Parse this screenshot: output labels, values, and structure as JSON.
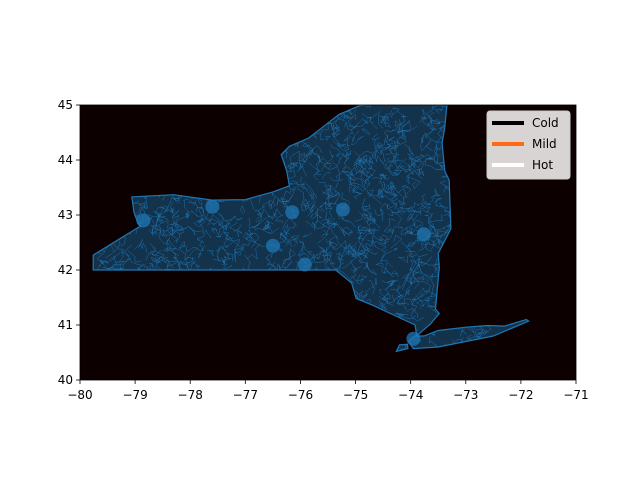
{
  "colors": {
    "figure_background": "#ffffff",
    "axes_background": "#0c0000",
    "roads": "#1f77b4",
    "legend_background": "#d9d4d4"
  },
  "chart_data": {
    "type": "map",
    "region": "New York State road network",
    "xlim": [
      -80,
      -71
    ],
    "ylim": [
      40,
      45
    ],
    "x_ticks": [
      "−80",
      "−79",
      "−78",
      "−77",
      "−76",
      "−75",
      "−74",
      "−73",
      "−72",
      "−71"
    ],
    "y_ticks": [
      "40",
      "41",
      "42",
      "43",
      "44",
      "45"
    ],
    "legend_placement": "top-right",
    "legend": [
      {
        "label": "Cold",
        "color": "#000000"
      },
      {
        "label": "Mild",
        "color": "#ff6a13"
      },
      {
        "label": "Hot",
        "color": "#ffffff"
      }
    ],
    "outline_lonlat": [
      [
        -79.76,
        42.27
      ],
      [
        -79.76,
        42.0
      ],
      [
        -75.36,
        42.0
      ],
      [
        -75.2,
        41.87
      ],
      [
        -75.07,
        41.76
      ],
      [
        -74.99,
        41.48
      ],
      [
        -74.69,
        41.36
      ],
      [
        -73.92,
        41.0
      ],
      [
        -73.89,
        40.8
      ],
      [
        -73.72,
        40.95
      ],
      [
        -73.65,
        41.01
      ],
      [
        -73.48,
        41.21
      ],
      [
        -73.55,
        41.29
      ],
      [
        -73.48,
        42.05
      ],
      [
        -73.5,
        42.3
      ],
      [
        -73.27,
        42.75
      ],
      [
        -73.3,
        43.63
      ],
      [
        -73.38,
        43.8
      ],
      [
        -73.43,
        44.3
      ],
      [
        -73.38,
        44.6
      ],
      [
        -73.34,
        45.01
      ],
      [
        -74.7,
        45.01
      ],
      [
        -74.92,
        44.99
      ],
      [
        -75.3,
        44.83
      ],
      [
        -75.85,
        44.4
      ],
      [
        -76.2,
        44.25
      ],
      [
        -76.35,
        44.1
      ],
      [
        -76.25,
        43.8
      ],
      [
        -76.2,
        43.53
      ],
      [
        -76.5,
        43.42
      ],
      [
        -77.0,
        43.28
      ],
      [
        -77.6,
        43.27
      ],
      [
        -78.3,
        43.37
      ],
      [
        -79.06,
        43.33
      ],
      [
        -79.02,
        43.05
      ],
      [
        -78.95,
        42.85
      ],
      [
        -78.9,
        42.8
      ],
      [
        -79.76,
        42.27
      ]
    ],
    "long_island_lonlat": [
      [
        -74.04,
        40.7
      ],
      [
        -73.95,
        40.57
      ],
      [
        -73.5,
        40.6
      ],
      [
        -73.0,
        40.7
      ],
      [
        -72.5,
        40.8
      ],
      [
        -71.86,
        41.07
      ],
      [
        -71.9,
        41.1
      ],
      [
        -72.3,
        40.98
      ],
      [
        -72.6,
        40.99
      ],
      [
        -73.0,
        40.96
      ],
      [
        -73.5,
        40.9
      ],
      [
        -73.76,
        40.8
      ],
      [
        -73.93,
        40.8
      ],
      [
        -74.04,
        40.7
      ]
    ],
    "staten_island_lonlat": [
      [
        -74.26,
        40.52
      ],
      [
        -74.05,
        40.57
      ],
      [
        -74.06,
        40.65
      ],
      [
        -74.2,
        40.64
      ],
      [
        -74.26,
        40.52
      ]
    ],
    "cities_lonlat": [
      [
        -78.85,
        42.9
      ],
      [
        -77.6,
        43.15
      ],
      [
        -76.15,
        43.05
      ],
      [
        -75.23,
        43.1
      ],
      [
        -73.76,
        42.65
      ],
      [
        -75.92,
        42.1
      ],
      [
        -73.95,
        40.75
      ],
      [
        -76.5,
        42.44
      ]
    ]
  }
}
